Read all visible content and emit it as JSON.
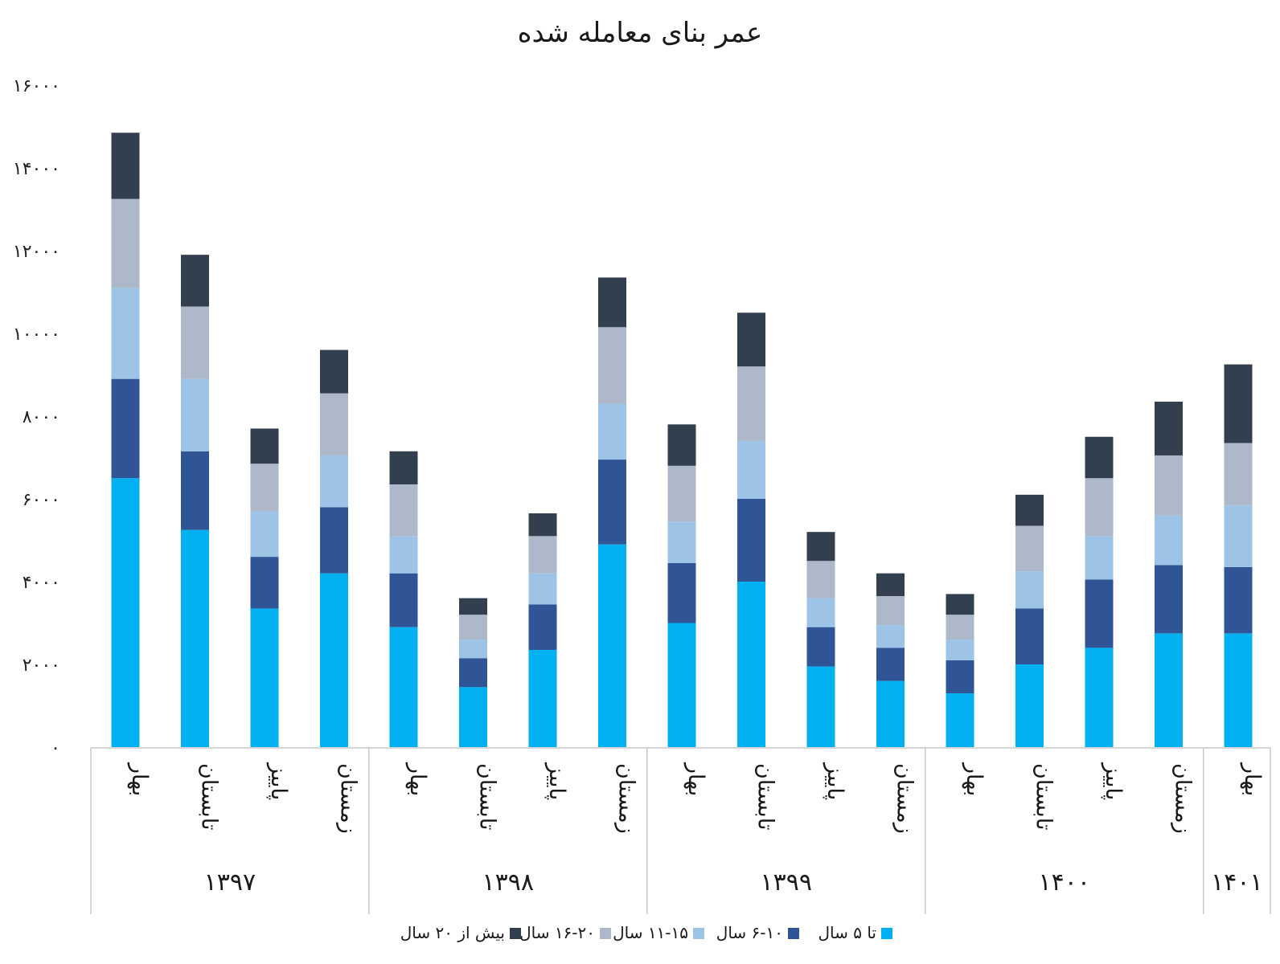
{
  "chart_data": {
    "type": "bar",
    "stacked": true,
    "title": "عمر بنای معامله شده",
    "ylim": [
      0,
      16000
    ],
    "yticks": [
      "۰",
      "۲۰۰۰",
      "۴۰۰۰",
      "۶۰۰۰",
      "۸۰۰۰",
      "۱۰۰۰۰",
      "۱۲۰۰۰",
      "۱۴۰۰۰",
      "۱۶۰۰۰"
    ],
    "ytick_values": [
      0,
      2000,
      4000,
      6000,
      8000,
      10000,
      12000,
      14000,
      16000
    ],
    "categories": [
      "بهار",
      "تابستان",
      "پاییز",
      "زمستان",
      "بهار",
      "تابستان",
      "پاییز",
      "زمستان",
      "بهار",
      "تابستان",
      "پاییز",
      "زمستان",
      "بهار",
      "تابستان",
      "پاییز",
      "زمستان",
      "بهار"
    ],
    "groups": [
      {
        "label": "۱۳۹۷",
        "count": 4
      },
      {
        "label": "۱۳۹۸",
        "count": 4
      },
      {
        "label": "۱۳۹۹",
        "count": 4
      },
      {
        "label": "۱۴۰۰",
        "count": 4
      },
      {
        "label": "۱۴۰۱",
        "count": 1
      }
    ],
    "series": [
      {
        "name": "تا ۵ سال",
        "color": "#00b0f0",
        "values": [
          6500,
          5250,
          3350,
          4200,
          2900,
          1450,
          2350,
          4900,
          3000,
          4000,
          1950,
          1600,
          1300,
          2000,
          2400,
          2750,
          2750
        ]
      },
      {
        "name": "۶-۱۰ سال",
        "color": "#2f5597",
        "values": [
          2400,
          1900,
          1250,
          1600,
          1300,
          700,
          1100,
          2050,
          1450,
          2000,
          950,
          800,
          800,
          1350,
          1650,
          1650,
          1600
        ]
      },
      {
        "name": "۱۱-۱۵ سال",
        "color": "#9dc3e6",
        "values": [
          2200,
          1750,
          1100,
          1250,
          900,
          450,
          750,
          1350,
          1000,
          1400,
          700,
          550,
          500,
          900,
          1050,
          1200,
          1500
        ]
      },
      {
        "name": "۱۶-۲۰ سال",
        "color": "#adb9ca",
        "values": [
          2150,
          1750,
          1150,
          1500,
          1250,
          600,
          900,
          1850,
          1350,
          1800,
          900,
          700,
          600,
          1100,
          1400,
          1450,
          1500
        ]
      },
      {
        "name": "بیش از ۲۰ سال",
        "color": "#323f4f",
        "values": [
          1600,
          1250,
          850,
          1050,
          800,
          400,
          550,
          1200,
          1000,
          1300,
          700,
          550,
          500,
          750,
          1000,
          1300,
          1900
        ]
      }
    ],
    "legend_position": "bottom",
    "grid": false
  }
}
